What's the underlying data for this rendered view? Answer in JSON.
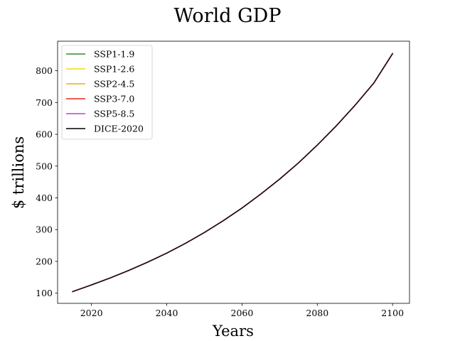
{
  "chart_data": {
    "type": "line",
    "title": "World GDP",
    "xlabel": "Years",
    "ylabel": "$ trillions",
    "xlim": [
      2011,
      2104.5
    ],
    "ylim": [
      68,
      893
    ],
    "xticks": [
      2020,
      2040,
      2060,
      2080,
      2100
    ],
    "yticks": [
      100,
      200,
      300,
      400,
      500,
      600,
      700,
      800
    ],
    "grid": false,
    "legend_position": "top-left",
    "x": [
      2015,
      2020,
      2025,
      2030,
      2035,
      2040,
      2045,
      2050,
      2055,
      2060,
      2065,
      2070,
      2075,
      2080,
      2085,
      2090,
      2095,
      2100
    ],
    "series": [
      {
        "name": "SSP1-1.9",
        "color": "#2e8b2e",
        "values": [
          105,
          126,
          148,
          172,
          198,
          226,
          257,
          291,
          328,
          368,
          412,
          459,
          510,
          566,
          626,
          691,
          761,
          854
        ]
      },
      {
        "name": "SSP1-2.6",
        "color": "#f5d90a",
        "values": [
          105,
          126,
          148,
          172,
          198,
          226,
          257,
          291,
          328,
          368,
          412,
          459,
          510,
          566,
          626,
          691,
          761,
          854
        ]
      },
      {
        "name": "SSP2-4.5",
        "color": "#f2a81d",
        "values": [
          105,
          126,
          148,
          172,
          198,
          226,
          257,
          291,
          328,
          368,
          412,
          459,
          510,
          566,
          626,
          691,
          761,
          854
        ]
      },
      {
        "name": "SSP3-7.0",
        "color": "#e8251b",
        "values": [
          105,
          126,
          148,
          172,
          198,
          226,
          257,
          291,
          328,
          368,
          412,
          459,
          510,
          566,
          626,
          691,
          761,
          854
        ]
      },
      {
        "name": "SSP5-8.5",
        "color": "#c43fd6",
        "values": [
          105,
          126,
          148,
          172,
          198,
          226,
          257,
          291,
          328,
          368,
          412,
          459,
          510,
          566,
          626,
          691,
          761,
          854
        ]
      },
      {
        "name": "DICE-2020",
        "color": "#000000",
        "values": [
          105,
          126,
          148,
          172,
          198,
          226,
          257,
          291,
          328,
          368,
          412,
          459,
          510,
          566,
          626,
          691,
          761,
          854
        ]
      }
    ]
  }
}
